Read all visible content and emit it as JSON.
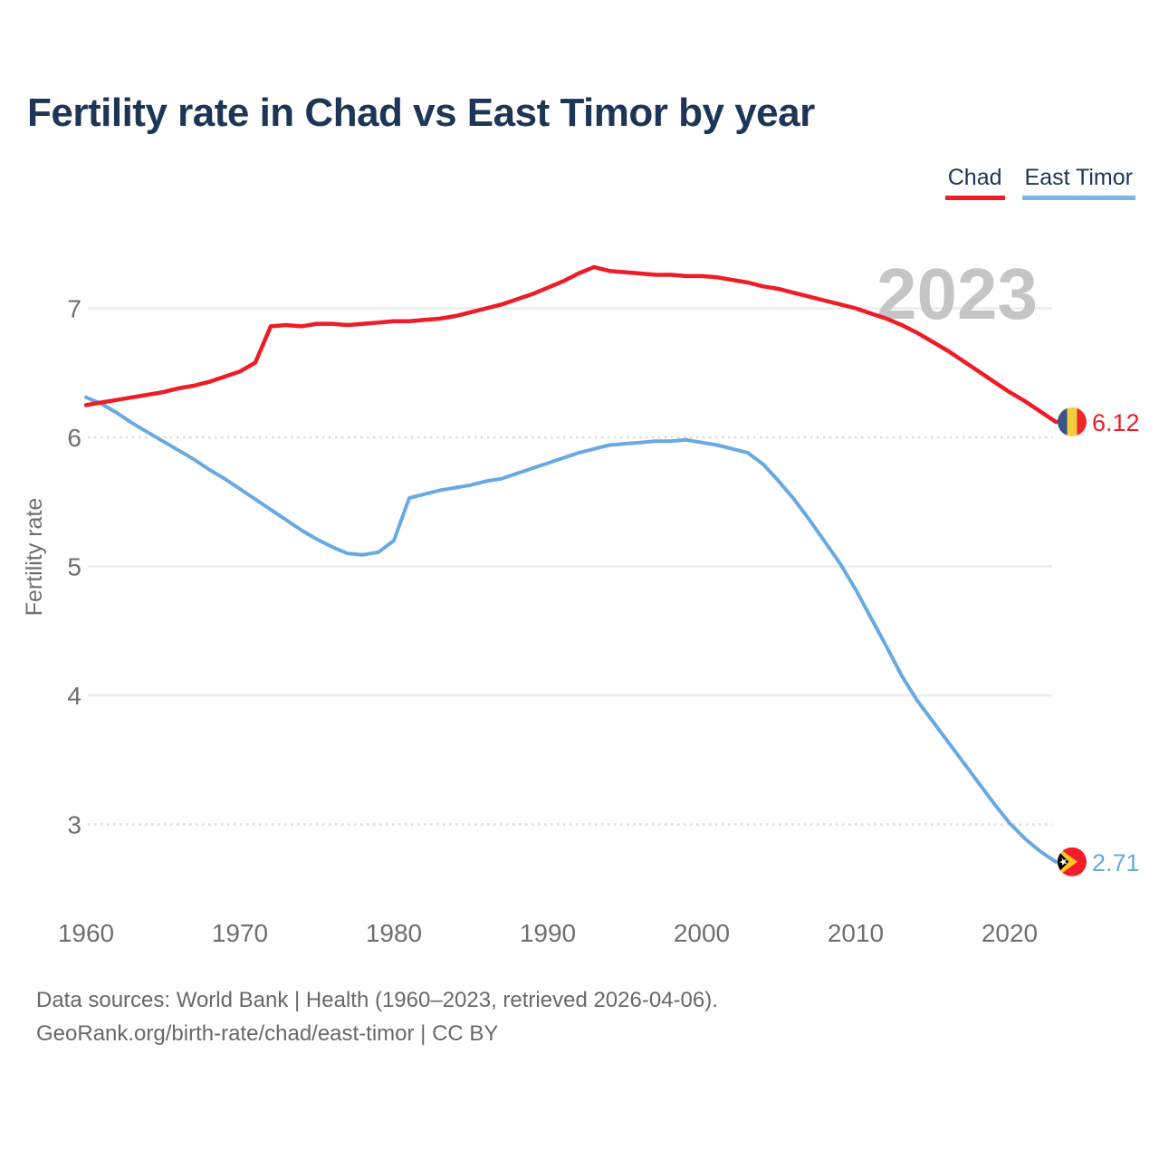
{
  "page": {
    "title": "Fertility rate in Chad vs East Timor by year"
  },
  "legend": {
    "items": [
      {
        "label": "Chad",
        "underline_color": "#ee1c26"
      },
      {
        "label": "East Timor",
        "underline_color": "#7cb5e6"
      }
    ]
  },
  "watermark": "2023",
  "footer": {
    "line1": "Data sources: World Bank | Health (1960–2023, retrieved 2026-04-06).",
    "line2": "GeoRank.org/birth-rate/chad/east-timor | CC BY"
  },
  "chart_data": {
    "type": "line",
    "title": "Fertility rate in Chad vs East Timor by year",
    "xlabel": "",
    "ylabel": "Fertility rate",
    "x_domain": [
      1960,
      2023
    ],
    "xticks": [
      1960,
      1970,
      1980,
      1990,
      2000,
      2010,
      2020
    ],
    "yticks": [
      7,
      6,
      5,
      4,
      3
    ],
    "dotted_gridlines": [
      6,
      3
    ],
    "grid": true,
    "legend_position": "top-right",
    "colors": {
      "chad_line": "#ee1c26",
      "east_timor_line": "#68a9e2",
      "axis_text": "#6f6f6f",
      "title_text": "#1d3557",
      "watermark_text": "#c5c5c5"
    },
    "years": [
      1960,
      1961,
      1962,
      1963,
      1964,
      1965,
      1966,
      1967,
      1968,
      1969,
      1970,
      1971,
      1972,
      1973,
      1974,
      1975,
      1976,
      1977,
      1978,
      1979,
      1980,
      1981,
      1982,
      1983,
      1984,
      1985,
      1986,
      1987,
      1988,
      1989,
      1990,
      1991,
      1992,
      1993,
      1994,
      1995,
      1996,
      1997,
      1998,
      1999,
      2000,
      2001,
      2002,
      2003,
      2004,
      2005,
      2006,
      2007,
      2008,
      2009,
      2010,
      2011,
      2012,
      2013,
      2014,
      2015,
      2016,
      2017,
      2018,
      2019,
      2020,
      2021,
      2022,
      2023
    ],
    "series": [
      {
        "name": "Chad",
        "color": "#ee1c26",
        "end_label": "6.12",
        "final_value": 6.12,
        "flag": "chad",
        "values": [
          6.25,
          6.27,
          6.29,
          6.31,
          6.33,
          6.35,
          6.38,
          6.4,
          6.43,
          6.47,
          6.51,
          6.58,
          6.86,
          6.87,
          6.86,
          6.88,
          6.88,
          6.87,
          6.88,
          6.89,
          6.9,
          6.9,
          6.91,
          6.92,
          6.94,
          6.97,
          7.0,
          7.03,
          7.07,
          7.11,
          7.16,
          7.21,
          7.27,
          7.32,
          7.29,
          7.28,
          7.27,
          7.26,
          7.26,
          7.25,
          7.25,
          7.24,
          7.22,
          7.2,
          7.17,
          7.15,
          7.12,
          7.09,
          7.06,
          7.03,
          7.0,
          6.96,
          6.92,
          6.87,
          6.81,
          6.74,
          6.67,
          6.59,
          6.51,
          6.43,
          6.35,
          6.28,
          6.2,
          6.12
        ]
      },
      {
        "name": "East Timor",
        "color": "#68a9e2",
        "end_label": "2.71",
        "final_value": 2.71,
        "flag": "east_timor",
        "values": [
          6.31,
          6.26,
          6.19,
          6.11,
          6.04,
          5.97,
          5.9,
          5.83,
          5.75,
          5.68,
          5.6,
          5.52,
          5.44,
          5.36,
          5.28,
          5.21,
          5.15,
          5.1,
          5.09,
          5.11,
          5.2,
          5.53,
          5.56,
          5.59,
          5.61,
          5.63,
          5.66,
          5.68,
          5.72,
          5.76,
          5.8,
          5.84,
          5.88,
          5.91,
          5.94,
          5.95,
          5.96,
          5.97,
          5.97,
          5.98,
          5.96,
          5.94,
          5.91,
          5.88,
          5.79,
          5.66,
          5.52,
          5.36,
          5.19,
          5.02,
          4.82,
          4.6,
          4.38,
          4.15,
          3.96,
          3.8,
          3.64,
          3.48,
          3.32,
          3.16,
          3.01,
          2.89,
          2.79,
          2.71
        ]
      }
    ]
  }
}
